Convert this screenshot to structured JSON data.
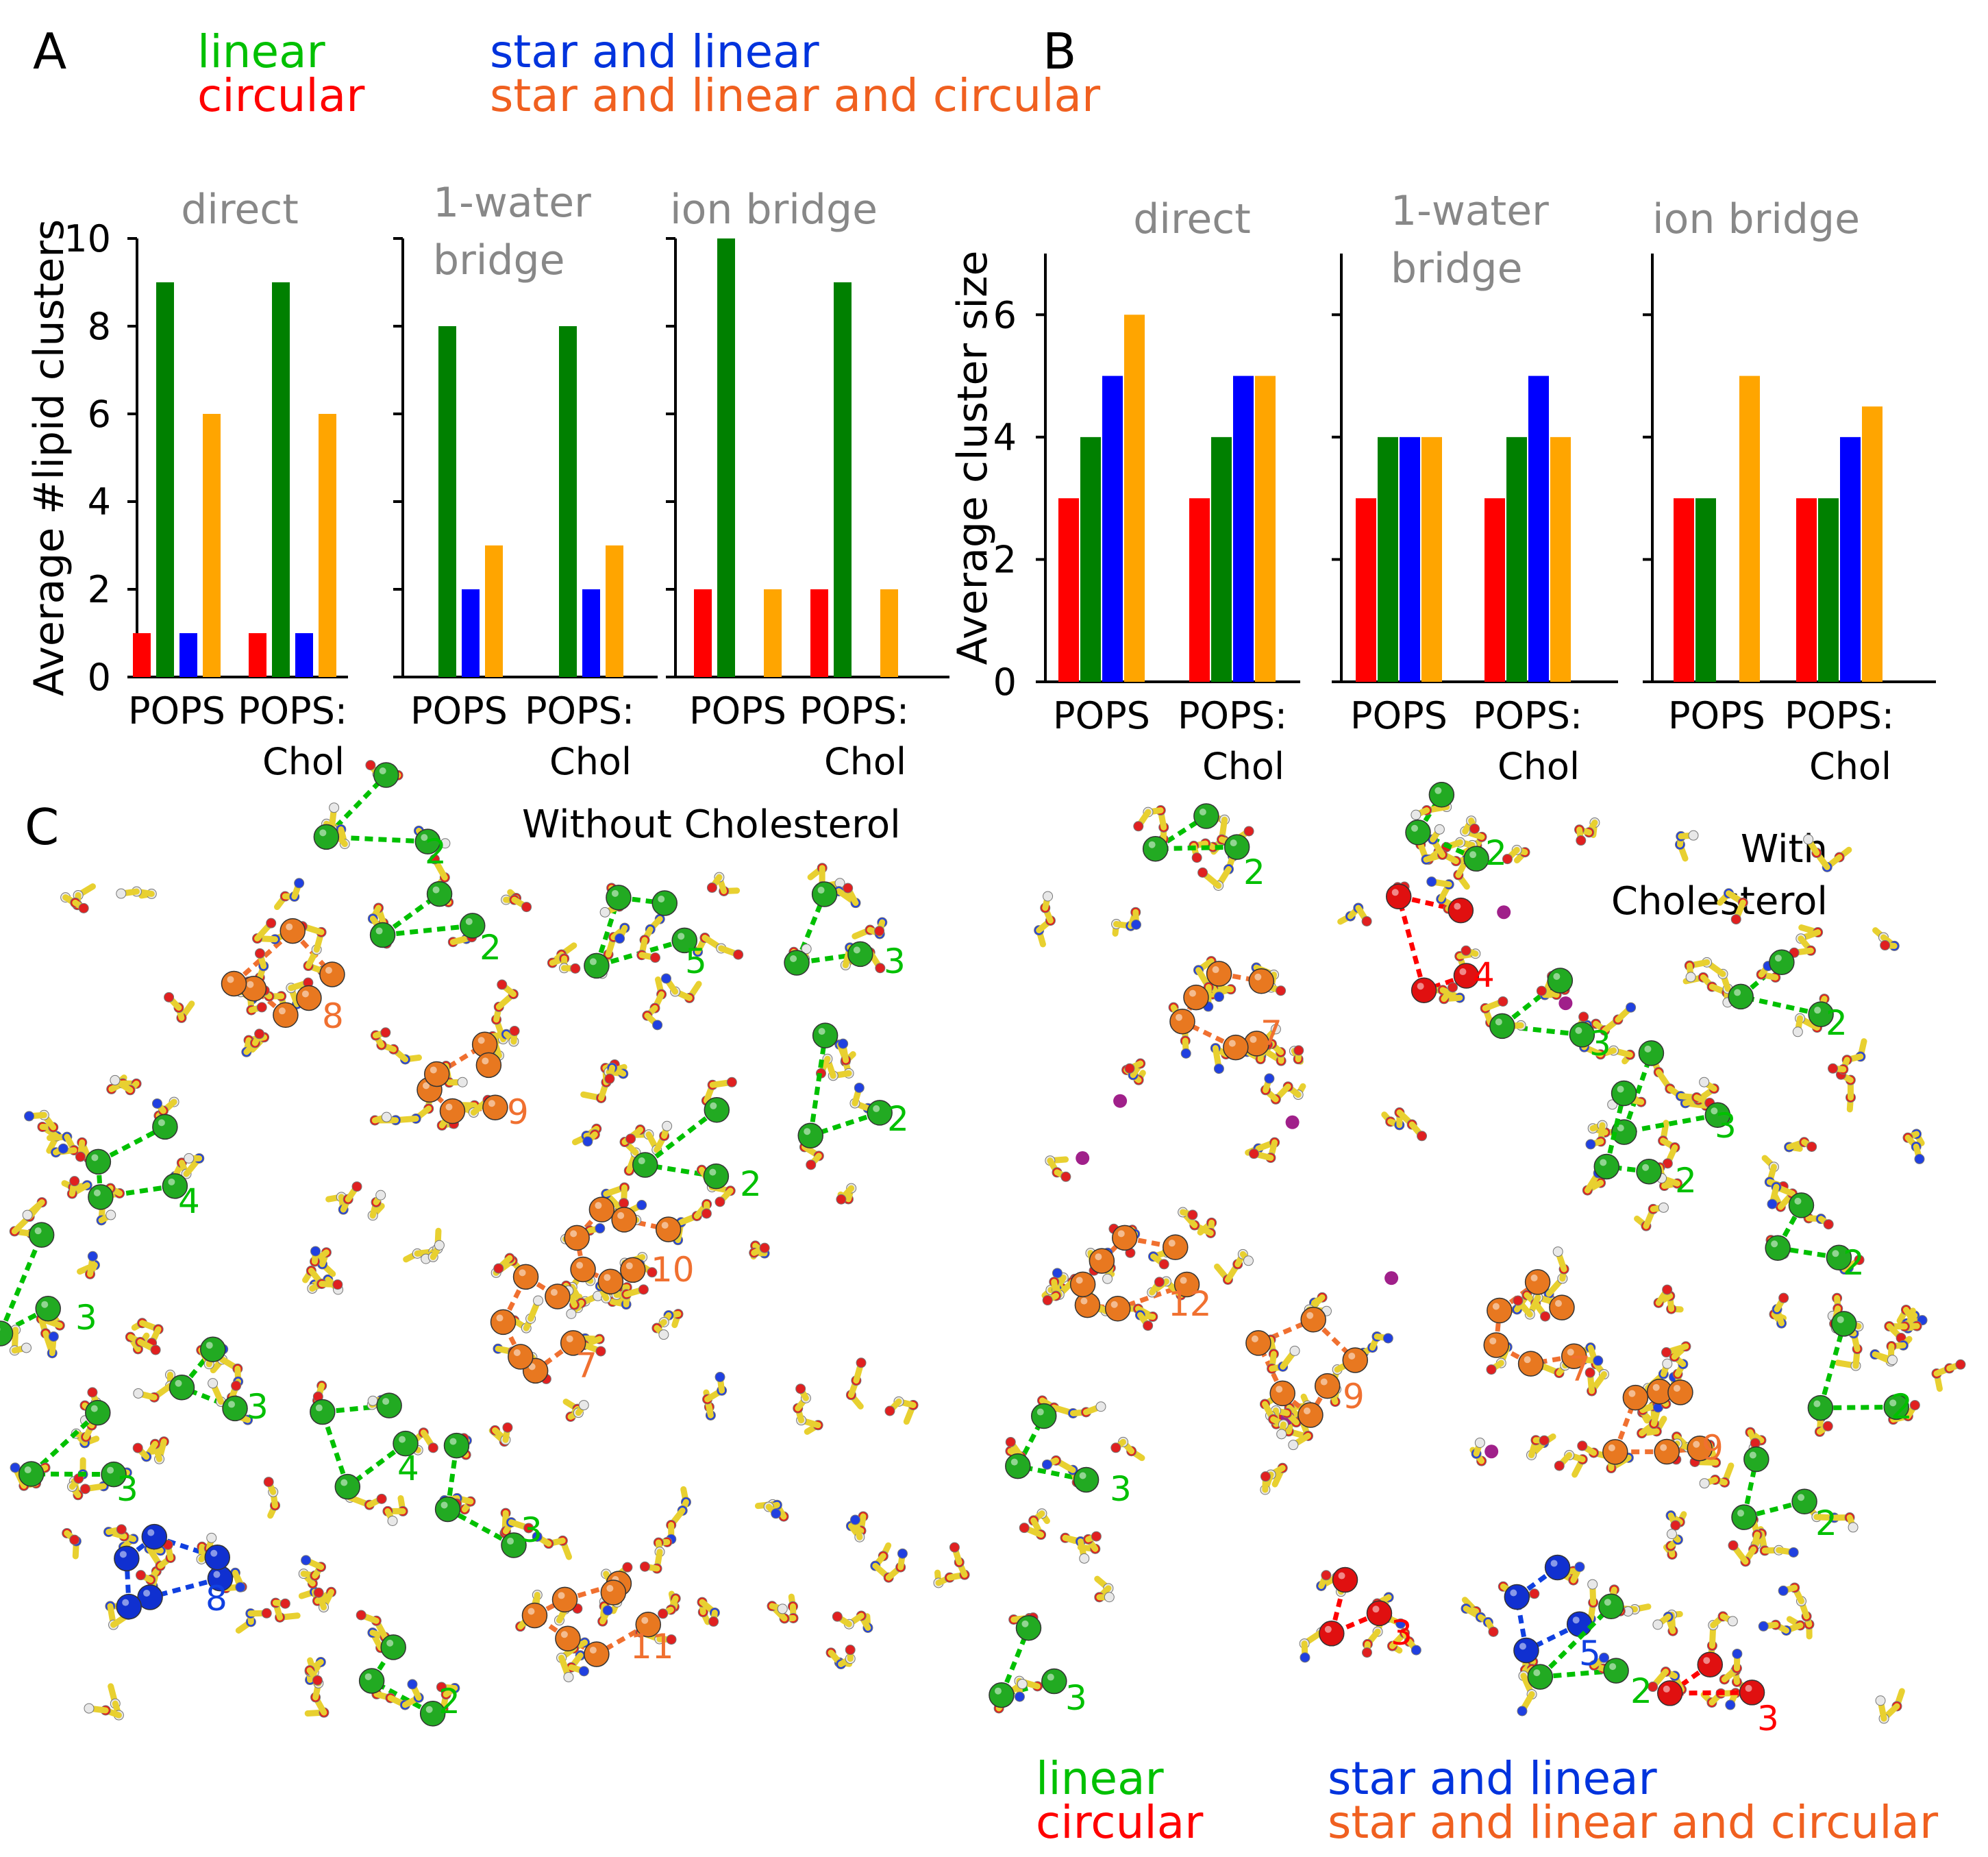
{
  "panels": {
    "a": "A",
    "b": "B",
    "c": "C"
  },
  "legend": {
    "linear": "linear",
    "circular": "circular",
    "star_linear": "star and linear",
    "star_linear_circular": "star and linear and circular"
  },
  "colors": {
    "circular": "#ff0000",
    "linear": "#008000",
    "star_linear": "#0000ff",
    "star_linear_circular": "#ffa500",
    "legend_linear": "#00c000",
    "legend_circular": "#ff0000",
    "legend_star_linear": "#0033dd",
    "legend_star_linear_circular": "#f06020"
  },
  "chart_data": [
    {
      "id": "A",
      "type": "bar",
      "ylabel": "Average #lipid clusters",
      "ylim": [
        0,
        10
      ],
      "yticks": [
        0,
        2,
        4,
        6,
        8,
        10
      ],
      "categories": [
        "POPS",
        "POPS:\nChol"
      ],
      "series_names": [
        "circular",
        "linear",
        "star and linear",
        "star and linear and circular"
      ],
      "subplots": [
        {
          "title": "direct",
          "values": [
            [
              1,
              9,
              1,
              6
            ],
            [
              1,
              9,
              1,
              6
            ]
          ]
        },
        {
          "title": "1-water\nbridge",
          "values": [
            [
              0,
              8,
              2,
              3
            ],
            [
              0,
              8,
              2,
              3
            ]
          ]
        },
        {
          "title": "ion bridge",
          "values": [
            [
              2,
              10,
              0,
              2
            ],
            [
              2,
              9,
              0,
              2
            ]
          ]
        }
      ]
    },
    {
      "id": "B",
      "type": "bar",
      "ylabel": "Average cluster size",
      "ylim": [
        0,
        7
      ],
      "yticks": [
        0,
        2,
        4,
        6
      ],
      "categories": [
        "POPS",
        "POPS:\nChol"
      ],
      "series_names": [
        "circular",
        "linear",
        "star and linear",
        "star and linear and circular"
      ],
      "subplots": [
        {
          "title": "direct",
          "values": [
            [
              3,
              4,
              5,
              6
            ],
            [
              3,
              4,
              5,
              5
            ]
          ]
        },
        {
          "title": "1-water\nbridge",
          "values": [
            [
              3,
              4,
              4,
              4
            ],
            [
              3,
              4,
              5,
              4
            ]
          ]
        },
        {
          "title": "ion bridge",
          "values": [
            [
              3,
              3,
              0,
              5
            ],
            [
              3,
              3,
              4,
              4.5
            ]
          ]
        }
      ]
    }
  ],
  "panel_c": {
    "left_title": "Without Cholesterol",
    "right_title": "With\nCholesterol",
    "left_labels": [
      {
        "t": "2",
        "c": "linear"
      },
      {
        "t": "2",
        "c": "linear"
      },
      {
        "t": "5",
        "c": "linear"
      },
      {
        "t": "3",
        "c": "linear"
      },
      {
        "t": "8",
        "c": "star_linear_circular"
      },
      {
        "t": "9",
        "c": "star_linear_circular"
      },
      {
        "t": "2",
        "c": "linear"
      },
      {
        "t": "2",
        "c": "linear"
      },
      {
        "t": "4",
        "c": "linear"
      },
      {
        "t": "10",
        "c": "star_linear_circular"
      },
      {
        "t": "3",
        "c": "linear"
      },
      {
        "t": "3",
        "c": "linear"
      },
      {
        "t": "7",
        "c": "star_linear_circular"
      },
      {
        "t": "4",
        "c": "linear"
      },
      {
        "t": "3",
        "c": "linear"
      },
      {
        "t": "3",
        "c": "linear"
      },
      {
        "t": "8",
        "c": "star_linear"
      },
      {
        "t": "11",
        "c": "star_linear_circular"
      },
      {
        "t": "2",
        "c": "linear"
      }
    ],
    "right_labels": [
      {
        "t": "2",
        "c": "linear"
      },
      {
        "t": "2",
        "c": "linear"
      },
      {
        "t": "4",
        "c": "circular"
      },
      {
        "t": "7",
        "c": "star_linear_circular"
      },
      {
        "t": "3",
        "c": "linear"
      },
      {
        "t": "2",
        "c": "linear"
      },
      {
        "t": "3",
        "c": "linear"
      },
      {
        "t": "2",
        "c": "linear"
      },
      {
        "t": "12",
        "c": "star_linear_circular"
      },
      {
        "t": "2",
        "c": "linear"
      },
      {
        "t": "7",
        "c": "star_linear_circular"
      },
      {
        "t": "9",
        "c": "star_linear_circular"
      },
      {
        "t": "2",
        "c": "linear"
      },
      {
        "t": "9",
        "c": "star_linear_circular"
      },
      {
        "t": "3",
        "c": "linear"
      },
      {
        "t": "2",
        "c": "linear"
      },
      {
        "t": "3",
        "c": "circular"
      },
      {
        "t": "5",
        "c": "star_linear"
      },
      {
        "t": "3",
        "c": "linear"
      },
      {
        "t": "2",
        "c": "linear"
      },
      {
        "t": "3",
        "c": "circular"
      }
    ]
  }
}
